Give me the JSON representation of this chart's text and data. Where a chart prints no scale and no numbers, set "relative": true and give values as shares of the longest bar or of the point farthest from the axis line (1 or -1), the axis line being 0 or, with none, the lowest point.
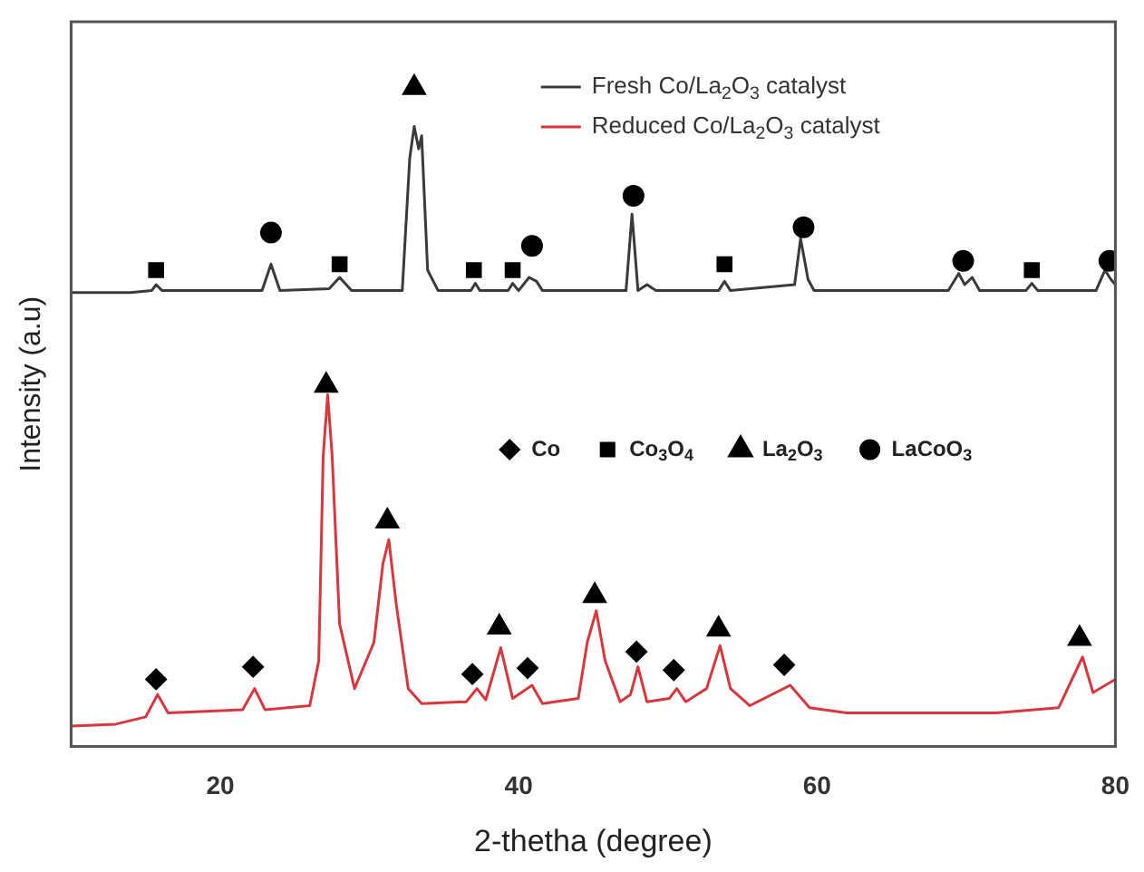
{
  "chart_data": {
    "type": "line",
    "relative": true,
    "xlabel": "2-thetha (degree)",
    "ylabel": "Intensity (a.u)",
    "xlim": [
      10,
      80
    ],
    "xticks": [
      20,
      40,
      60,
      80
    ],
    "legend": "top right",
    "grid": false,
    "marker": "none",
    "line_style": "solid",
    "series": [
      {
        "name": "Fresh Co/La$_{2}$O$_{3}$ catalyst",
        "color": "#3a3a3a",
        "x": [
          10,
          14,
          15.4,
          15.7,
          16.1,
          22.8,
          23.4,
          24,
          27.3,
          28,
          28.8,
          32.2,
          32.7,
          33.0,
          33.3,
          33.5,
          33.9,
          34.6,
          36.8,
          37.1,
          37.4,
          39.3,
          39.6,
          40.0,
          40.7,
          41.2,
          41.6,
          47.2,
          47.6,
          48.0,
          48.6,
          49.2,
          53.4,
          53.8,
          54.2,
          58.5,
          58.9,
          59.4,
          59.8,
          68.8,
          69.5,
          69.9,
          70.4,
          70.9,
          74.0,
          74.4,
          74.8,
          78.7,
          79.3,
          79.7,
          80
        ],
        "values": [
          0.689,
          0.689,
          0.692,
          0.701,
          0.692,
          0.692,
          0.732,
          0.692,
          0.695,
          0.712,
          0.692,
          0.692,
          0.893,
          0.941,
          0.907,
          0.927,
          0.723,
          0.692,
          0.692,
          0.703,
          0.692,
          0.692,
          0.703,
          0.692,
          0.712,
          0.706,
          0.692,
          0.692,
          0.808,
          0.692,
          0.701,
          0.692,
          0.692,
          0.706,
          0.692,
          0.701,
          0.771,
          0.709,
          0.692,
          0.692,
          0.718,
          0.701,
          0.712,
          0.692,
          0.692,
          0.703,
          0.692,
          0.692,
          0.723,
          0.709,
          0.701
        ]
      },
      {
        "name": "Reduced Co/La$_{2}$O$_{3}$ catalyst",
        "color": "#d9363e",
        "x": [
          10,
          13,
          15,
          15.8,
          16.5,
          21.5,
          22.3,
          23,
          26,
          26.6,
          26.9,
          27.2,
          27.5,
          28,
          29,
          30.3,
          30.9,
          31.3,
          31.8,
          32.6,
          33.5,
          36.5,
          37.2,
          37.8,
          38.8,
          39.6,
          40.9,
          41.6,
          44,
          44.6,
          45.2,
          45.8,
          46.8,
          47.5,
          48.0,
          48.6,
          50.1,
          50.6,
          51.2,
          52.6,
          53.5,
          54.2,
          55.5,
          58.2,
          59.5,
          62,
          72,
          76.2,
          77.8,
          78.5,
          80
        ],
        "values": [
          0.031,
          0.034,
          0.045,
          0.079,
          0.051,
          0.056,
          0.088,
          0.056,
          0.062,
          0.13,
          0.441,
          0.534,
          0.441,
          0.186,
          0.088,
          0.158,
          0.277,
          0.314,
          0.215,
          0.088,
          0.065,
          0.068,
          0.088,
          0.071,
          0.15,
          0.073,
          0.093,
          0.065,
          0.073,
          0.158,
          0.206,
          0.13,
          0.068,
          0.079,
          0.121,
          0.068,
          0.073,
          0.088,
          0.068,
          0.088,
          0.153,
          0.088,
          0.062,
          0.093,
          0.059,
          0.051,
          0.051,
          0.059,
          0.136,
          0.082,
          0.102
        ]
      },
      {
        "name": "Co",
        "type": "scatter",
        "marker": "diamond",
        "color": "#000000",
        "x": [
          15.7,
          22.2,
          36.9,
          40.6,
          47.9,
          50.4,
          57.8
        ],
        "values": [
          0.102,
          0.121,
          0.11,
          0.119,
          0.144,
          0.116,
          0.124
        ]
      },
      {
        "name": "Co$_{3}$O$_{4}$",
        "type": "scatter",
        "marker": "square",
        "color": "#000000",
        "x": [
          15.7,
          28,
          37,
          39.6,
          53.8,
          74.4
        ],
        "values": [
          0.723,
          0.732,
          0.723,
          0.723,
          0.732,
          0.723
        ]
      },
      {
        "name": "La$_{2}$O$_{3}$",
        "type": "scatter",
        "marker": "triangle",
        "color": "#000000",
        "x": [
          33.0,
          27.1,
          31.2,
          38.7,
          45.1,
          53.4,
          77.6
        ],
        "values": [
          1.0,
          0.548,
          0.342,
          0.181,
          0.229,
          0.178,
          0.164
        ]
      },
      {
        "name": "LaCoO$_{3}$",
        "type": "scatter",
        "marker": "circle",
        "color": "#000000",
        "x": [
          23.4,
          40.9,
          47.7,
          59.1,
          69.8,
          79.6
        ],
        "values": [
          0.78,
          0.76,
          0.836,
          0.788,
          0.737,
          0.737
        ]
      }
    ]
  }
}
